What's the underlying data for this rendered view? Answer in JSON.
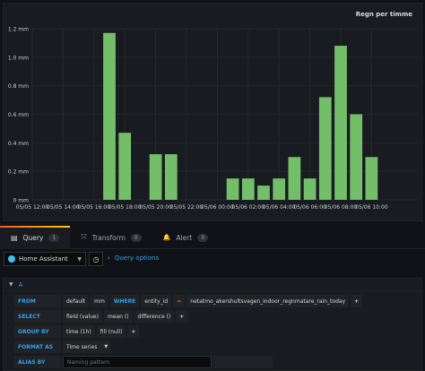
{
  "panel": {
    "title": "Regn per timme"
  },
  "chart_data": {
    "type": "bar",
    "y_ticks": [
      "0 mm",
      "0.2 mm",
      "0.4 mm",
      "0.6 mm",
      "0.8 mm",
      "1.0 mm",
      "1.2 mm"
    ],
    "ylim": [
      0,
      1.2
    ],
    "x_ticks": [
      "05/05 12:00",
      "05/05 14:00",
      "05/05 16:00",
      "05/05 18:00",
      "05/05 20:00",
      "05/05 22:00",
      "05/06 00:00",
      "05/06 02:00",
      "05/06 04:00",
      "05/06 06:00",
      "05/06 08:00",
      "05/06 10:00"
    ],
    "x_range_hours": [
      0,
      25
    ],
    "bar_color": "#73bf69",
    "bars": [
      {
        "hour": 5,
        "value": 1.17
      },
      {
        "hour": 6,
        "value": 0.47
      },
      {
        "hour": 8,
        "value": 0.32
      },
      {
        "hour": 9,
        "value": 0.32
      },
      {
        "hour": 13,
        "value": 0.15
      },
      {
        "hour": 14,
        "value": 0.15
      },
      {
        "hour": 15,
        "value": 0.1
      },
      {
        "hour": 16,
        "value": 0.15
      },
      {
        "hour": 17,
        "value": 0.3
      },
      {
        "hour": 18,
        "value": 0.15
      },
      {
        "hour": 19,
        "value": 0.72
      },
      {
        "hour": 20,
        "value": 1.08
      },
      {
        "hour": 21,
        "value": 0.6
      },
      {
        "hour": 22,
        "value": 0.3
      }
    ]
  },
  "tabs": [
    {
      "icon": "database-icon",
      "glyph": "▤",
      "label": "Query",
      "count": "1"
    },
    {
      "icon": "transform-icon",
      "glyph": "⤧",
      "label": "Transform",
      "count": "0"
    },
    {
      "icon": "bell-icon",
      "glyph": "🔔",
      "label": "Alert",
      "count": "0"
    }
  ],
  "datasource": {
    "name": "Home Assistant",
    "history_glyph": "◷",
    "query_options": "Query options"
  },
  "query": {
    "ref": "A",
    "from": {
      "label": "FROM",
      "policy": "default",
      "measurement": "mm",
      "where": "WHERE",
      "tag": "entity_id",
      "op": "=",
      "value": "netatmo_akershultsvagen_indoor_regnmatare_rain_today"
    },
    "select": {
      "label": "SELECT",
      "field": "field (value)",
      "agg": "mean ()",
      "transform": "difference ()"
    },
    "group_by": {
      "label": "GROUP BY",
      "time": "time (1h)",
      "fill": "fill (null)"
    },
    "format_as": {
      "label": "FORMAT AS",
      "value": "Time series"
    },
    "alias_by": {
      "label": "ALIAS BY",
      "placeholder": "Naming pattern"
    }
  }
}
